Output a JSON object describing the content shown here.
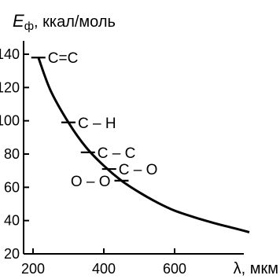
{
  "chart_data": {
    "type": "line",
    "ylabel_symbol": "E",
    "ylabel_subscript": "ф",
    "ylabel_unit": ", ккал/моль",
    "xlabel": "λ, мкм",
    "xlim": [
      200,
      800
    ],
    "ylim": [
      20,
      150
    ],
    "x_ticks": [
      200,
      400,
      600
    ],
    "y_ticks": [
      20,
      40,
      60,
      80,
      100,
      120,
      140
    ],
    "series": [
      {
        "x": [
          215,
          250,
          300,
          350,
          400,
          450,
          500,
          550,
          600,
          650,
          700,
          750,
          790
        ],
        "y": [
          138,
          118,
          99,
          84,
          73,
          64,
          57,
          51,
          46,
          42,
          38.5,
          35.5,
          33
        ]
      }
    ],
    "annotations": [
      {
        "text": "C=C",
        "x": 215,
        "y": 138,
        "side": "right"
      },
      {
        "text": "C – H",
        "x": 300,
        "y": 99,
        "side": "right"
      },
      {
        "text": "C – C",
        "x": 355,
        "y": 81,
        "side": "right"
      },
      {
        "text": "C – O",
        "x": 415,
        "y": 71,
        "side": "right"
      },
      {
        "text": "O – O",
        "x": 450,
        "y": 64,
        "side": "left"
      }
    ]
  }
}
